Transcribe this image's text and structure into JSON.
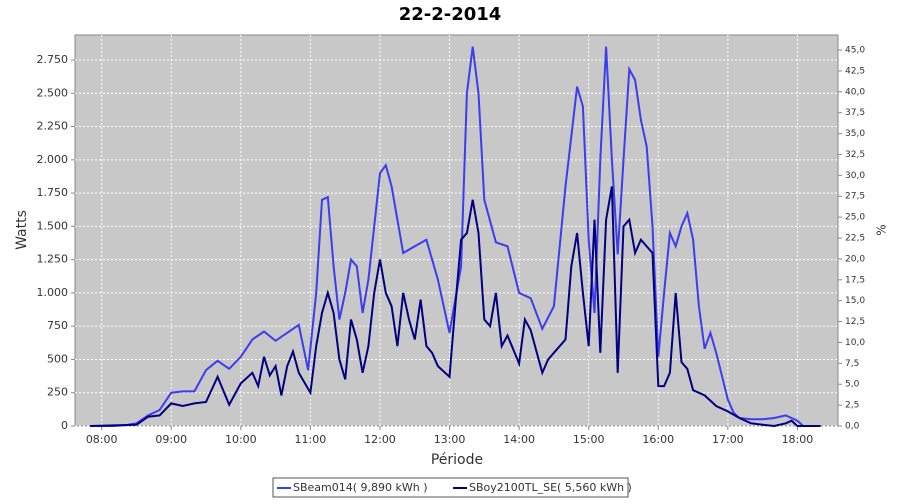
{
  "chart_data": {
    "type": "line",
    "title": "22-2-2014",
    "xlabel": "Période",
    "ylabel": "Watts",
    "y2label": "%",
    "xlim": [
      "07:37",
      "18:35"
    ],
    "xticks": [
      "08:00",
      "09:00",
      "10:00",
      "11:00",
      "12:00",
      "13:00",
      "14:00",
      "15:00",
      "16:00",
      "17:00",
      "18:00"
    ],
    "ylim": [
      0,
      2938
    ],
    "yticks": [
      0,
      250,
      500,
      750,
      {
        "value": 1000,
        "label": "1.000"
      },
      {
        "value": 1250,
        "label": "1.250"
      },
      {
        "value": 1500,
        "label": "1.500"
      },
      {
        "value": 1750,
        "label": "1.750"
      },
      {
        "value": 2000,
        "label": "2.000"
      },
      {
        "value": 2250,
        "label": "2.250"
      },
      {
        "value": 2500,
        "label": "2.500"
      },
      {
        "value": 2750,
        "label": "2.750"
      }
    ],
    "y2lim": [
      0,
      46.8
    ],
    "y2ticks": [
      {
        "value": 0,
        "label": "0,0"
      },
      {
        "value": 2.5,
        "label": "2,5"
      },
      {
        "value": 5,
        "label": "5,0"
      },
      {
        "value": 7.5,
        "label": "7,5"
      },
      {
        "value": 10,
        "label": "10,0"
      },
      {
        "value": 12.5,
        "label": "12,5"
      },
      {
        "value": 15,
        "label": "15,0"
      },
      {
        "value": 17.5,
        "label": "17,5"
      },
      {
        "value": 20,
        "label": "20,0"
      },
      {
        "value": 22.5,
        "label": "22,5"
      },
      {
        "value": 25,
        "label": "25,0"
      },
      {
        "value": 27.5,
        "label": "27,5"
      },
      {
        "value": 30,
        "label": "30,0"
      },
      {
        "value": 32.5,
        "label": "32,5"
      },
      {
        "value": 35,
        "label": "35,0"
      },
      {
        "value": 37.5,
        "label": "37,5"
      },
      {
        "value": 40,
        "label": "40,0"
      },
      {
        "value": 42.5,
        "label": "42,5"
      },
      {
        "value": 45,
        "label": "45,0"
      }
    ],
    "grid": true,
    "legend": "bottom",
    "series": [
      {
        "name": "SBeam014( 9,890 kWh )",
        "color": "#3c3cf0",
        "x": [
          "07:50",
          "08:00",
          "08:10",
          "08:20",
          "08:30",
          "08:40",
          "08:50",
          "09:00",
          "09:10",
          "09:20",
          "09:30",
          "09:40",
          "09:50",
          "10:00",
          "10:10",
          "10:20",
          "10:30",
          "10:40",
          "10:50",
          "10:58",
          "11:05",
          "11:10",
          "11:15",
          "11:20",
          "11:25",
          "11:30",
          "11:35",
          "11:40",
          "11:45",
          "11:50",
          "12:00",
          "12:05",
          "12:10",
          "12:20",
          "12:30",
          "12:40",
          "12:50",
          "13:00",
          "13:10",
          "13:15",
          "13:20",
          "13:25",
          "13:30",
          "13:40",
          "13:50",
          "14:00",
          "14:10",
          "14:20",
          "14:30",
          "14:40",
          "14:50",
          "14:55",
          "15:00",
          "15:05",
          "15:10",
          "15:15",
          "15:20",
          "15:25",
          "15:30",
          "15:35",
          "15:40",
          "15:45",
          "15:50",
          "15:55",
          "16:00",
          "16:05",
          "16:10",
          "16:15",
          "16:20",
          "16:25",
          "16:30",
          "16:35",
          "16:40",
          "16:45",
          "16:50",
          "17:00",
          "17:05",
          "17:10",
          "17:20",
          "17:30",
          "17:40",
          "17:50",
          "18:00",
          "18:05",
          "18:20"
        ],
        "values": [
          0,
          0,
          0,
          5,
          20,
          80,
          120,
          250,
          260,
          260,
          420,
          490,
          430,
          520,
          650,
          710,
          640,
          700,
          760,
          420,
          1000,
          1700,
          1720,
          1200,
          800,
          1000,
          1250,
          1200,
          850,
          1100,
          1900,
          1960,
          1800,
          1300,
          1350,
          1400,
          1100,
          700,
          1200,
          2500,
          2850,
          2500,
          1700,
          1380,
          1350,
          1000,
          960,
          730,
          900,
          1800,
          2550,
          2400,
          1400,
          850,
          2000,
          2850,
          2000,
          1290,
          2000,
          2680,
          2600,
          2300,
          2100,
          1500,
          520,
          1000,
          1450,
          1350,
          1500,
          1600,
          1400,
          900,
          580,
          700,
          550,
          200,
          100,
          60,
          50,
          50,
          60,
          80,
          40,
          0,
          0
        ]
      },
      {
        "name": "SBoy2100TL_SE( 5,560 kWh )",
        "color": "#000080",
        "x": [
          "07:50",
          "08:30",
          "08:40",
          "08:50",
          "09:00",
          "09:10",
          "09:20",
          "09:30",
          "09:40",
          "09:50",
          "10:00",
          "10:10",
          "10:15",
          "10:20",
          "10:25",
          "10:30",
          "10:35",
          "10:40",
          "10:45",
          "10:50",
          "11:00",
          "11:05",
          "11:10",
          "11:15",
          "11:20",
          "11:25",
          "11:30",
          "11:35",
          "11:40",
          "11:45",
          "11:50",
          "11:55",
          "12:00",
          "12:05",
          "12:10",
          "12:15",
          "12:20",
          "12:25",
          "12:30",
          "12:35",
          "12:40",
          "12:45",
          "12:50",
          "13:00",
          "13:05",
          "13:10",
          "13:15",
          "13:20",
          "13:25",
          "13:30",
          "13:35",
          "13:40",
          "13:45",
          "13:50",
          "14:00",
          "14:05",
          "14:10",
          "14:20",
          "14:25",
          "14:30",
          "14:40",
          "14:45",
          "14:50",
          "14:55",
          "15:00",
          "15:05",
          "15:10",
          "15:15",
          "15:20",
          "15:25",
          "15:30",
          "15:35",
          "15:40",
          "15:45",
          "15:55",
          "16:00",
          "16:05",
          "16:10",
          "16:15",
          "16:20",
          "16:25",
          "16:30",
          "16:40",
          "16:50",
          "17:00",
          "17:10",
          "17:20",
          "17:30",
          "17:40",
          "17:50",
          "17:55",
          "18:00",
          "18:20"
        ],
        "values": [
          0,
          10,
          70,
          80,
          170,
          150,
          170,
          180,
          370,
          160,
          320,
          400,
          300,
          520,
          380,
          450,
          230,
          450,
          560,
          400,
          250,
          600,
          850,
          1000,
          850,
          500,
          350,
          800,
          650,
          400,
          600,
          1000,
          1250,
          1000,
          900,
          600,
          1000,
          800,
          650,
          950,
          600,
          550,
          450,
          370,
          900,
          1400,
          1450,
          1700,
          1450,
          800,
          750,
          1000,
          600,
          680,
          470,
          800,
          720,
          400,
          500,
          550,
          650,
          1200,
          1450,
          1000,
          600,
          1550,
          550,
          1550,
          1800,
          400,
          1500,
          1550,
          1300,
          1400,
          1300,
          300,
          300,
          400,
          1000,
          480,
          430,
          270,
          230,
          150,
          110,
          60,
          20,
          10,
          0,
          20,
          40,
          0,
          0
        ]
      }
    ]
  }
}
